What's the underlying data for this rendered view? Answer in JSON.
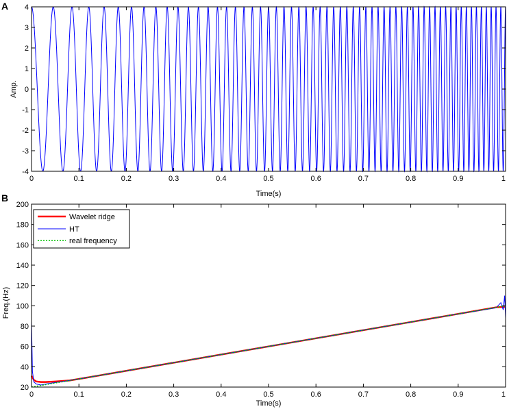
{
  "chart_data": [
    {
      "panel": "A",
      "type": "line",
      "title": "",
      "xlabel": "Time(s)",
      "ylabel": "Amp.",
      "xlim": [
        0,
        1
      ],
      "ylim": [
        -4,
        4
      ],
      "xticks": [
        "0",
        "0.1",
        "0.2",
        "0.3",
        "0.4",
        "0.5",
        "0.6",
        "0.7",
        "0.8",
        "0.9",
        "1"
      ],
      "yticks": [
        "-4",
        "-3",
        "-2",
        "-1",
        "0",
        "1",
        "2",
        "3",
        "4"
      ],
      "grid": false,
      "series": [
        {
          "color": "#0000ff",
          "description_values": {
            "amplitude": 4,
            "instantaneous_frequency_start_hz": 20,
            "instantaneous_frequency_end_hz": 100
          }
        }
      ]
    },
    {
      "panel": "B",
      "type": "line",
      "title": "",
      "xlabel": "Time(s)",
      "ylabel": "Freq.(Hz)",
      "xlim": [
        0,
        1
      ],
      "ylim": [
        20,
        200
      ],
      "xticks": [
        "0",
        "0.1",
        "0.2",
        "0.3",
        "0.4",
        "0.5",
        "0.6",
        "0.7",
        "0.8",
        "0.9",
        "1"
      ],
      "yticks": [
        "20",
        "40",
        "60",
        "80",
        "100",
        "120",
        "140",
        "160",
        "180",
        "200"
      ],
      "grid": false,
      "legend_position": "top-left",
      "series": [
        {
          "name": "Wavelet ridge",
          "color": "#ff0000",
          "x": [
            0.0,
            0.005,
            0.01,
            0.02,
            0.03,
            0.05,
            0.08,
            0.1,
            0.2,
            0.3,
            0.4,
            0.5,
            0.6,
            0.7,
            0.8,
            0.9,
            0.98,
            1.0
          ],
          "y": [
            31,
            27,
            25.5,
            25,
            25,
            25.5,
            26.5,
            28,
            36,
            44,
            52,
            60,
            68,
            76,
            84,
            92,
            98.5,
            99
          ]
        },
        {
          "name": "HT",
          "color": "#0000ff",
          "x": [
            0.0,
            0.002,
            0.005,
            0.01,
            0.02,
            0.03,
            0.05,
            0.08,
            0.1,
            0.2,
            0.3,
            0.4,
            0.5,
            0.6,
            0.7,
            0.8,
            0.9,
            0.98,
            0.99,
            0.995,
            0.998,
            1.0
          ],
          "y": [
            85,
            35,
            25,
            23,
            22,
            23,
            24.5,
            26.5,
            28,
            36,
            44,
            52,
            60,
            68,
            76,
            84,
            92,
            98,
            103,
            96,
            110,
            88
          ]
        },
        {
          "name": "real frequency",
          "color": "#00c000",
          "x": [
            0,
            1
          ],
          "y": [
            20,
            100
          ]
        }
      ]
    }
  ]
}
